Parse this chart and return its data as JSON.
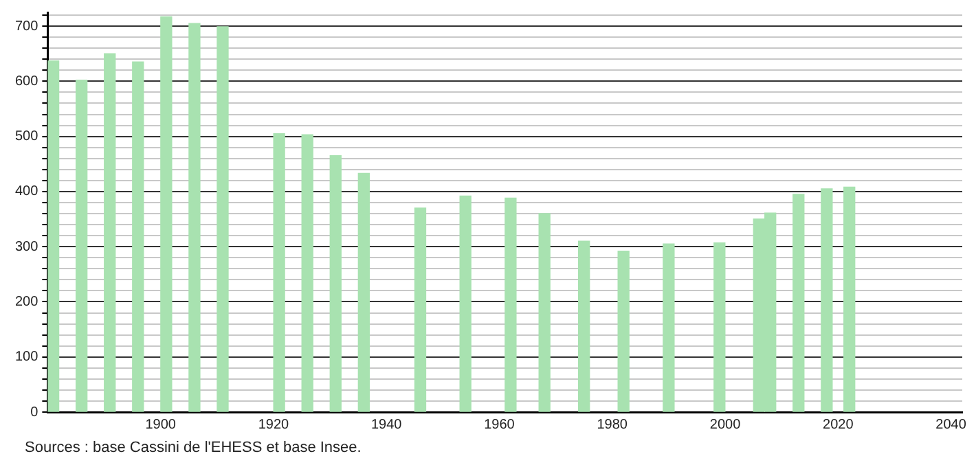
{
  "chart_data": {
    "type": "bar",
    "x": [
      1881,
      1886,
      1891,
      1896,
      1901,
      1906,
      1911,
      1921,
      1926,
      1931,
      1936,
      1946,
      1954,
      1962,
      1968,
      1975,
      1982,
      1990,
      1999,
      2006,
      2008,
      2013,
      2018,
      2022
    ],
    "values": [
      637,
      602,
      650,
      635,
      717,
      705,
      699,
      505,
      503,
      465,
      433,
      370,
      392,
      388,
      360,
      310,
      292,
      305,
      307,
      350,
      361,
      395,
      405,
      408
    ],
    "color": "#a8e2b0",
    "xlim": [
      1880,
      2042
    ],
    "xticks": [
      1900,
      1920,
      1940,
      1960,
      1980,
      2000,
      2020,
      2040
    ],
    "ylim": [
      0,
      725
    ],
    "yticks": [
      0,
      {
        "value": 20,
        "label": null
      },
      {
        "value": 40,
        "label": null
      },
      {
        "value": 60,
        "label": null
      },
      {
        "value": 80,
        "label": null
      },
      100,
      {
        "value": 120,
        "label": null
      },
      {
        "value": 140,
        "label": null
      },
      {
        "value": 160,
        "label": null
      },
      {
        "value": 180,
        "label": null
      },
      200,
      {
        "value": 220,
        "label": null
      },
      {
        "value": 240,
        "label": null
      },
      {
        "value": 260,
        "label": null
      },
      {
        "value": 280,
        "label": null
      },
      300,
      {
        "value": 320,
        "label": null
      },
      {
        "value": 340,
        "label": null
      },
      {
        "value": 360,
        "label": null
      },
      {
        "value": 380,
        "label": null
      },
      400,
      {
        "value": 420,
        "label": null
      },
      {
        "value": 440,
        "label": null
      },
      {
        "value": 460,
        "label": null
      },
      {
        "value": 480,
        "label": null
      },
      500,
      {
        "value": 520,
        "label": null
      },
      {
        "value": 540,
        "label": null
      },
      {
        "value": 560,
        "label": null
      },
      {
        "value": 580,
        "label": null
      },
      600,
      {
        "value": 620,
        "label": null
      },
      {
        "value": 640,
        "label": null
      },
      {
        "value": 660,
        "label": null
      },
      {
        "value": 680,
        "label": null
      },
      700,
      {
        "value": 720,
        "label": null
      }
    ],
    "grid": "y",
    "legend": false,
    "annotations": [
      "Sources : base Cassini de l'EHESS et base Insee."
    ]
  }
}
